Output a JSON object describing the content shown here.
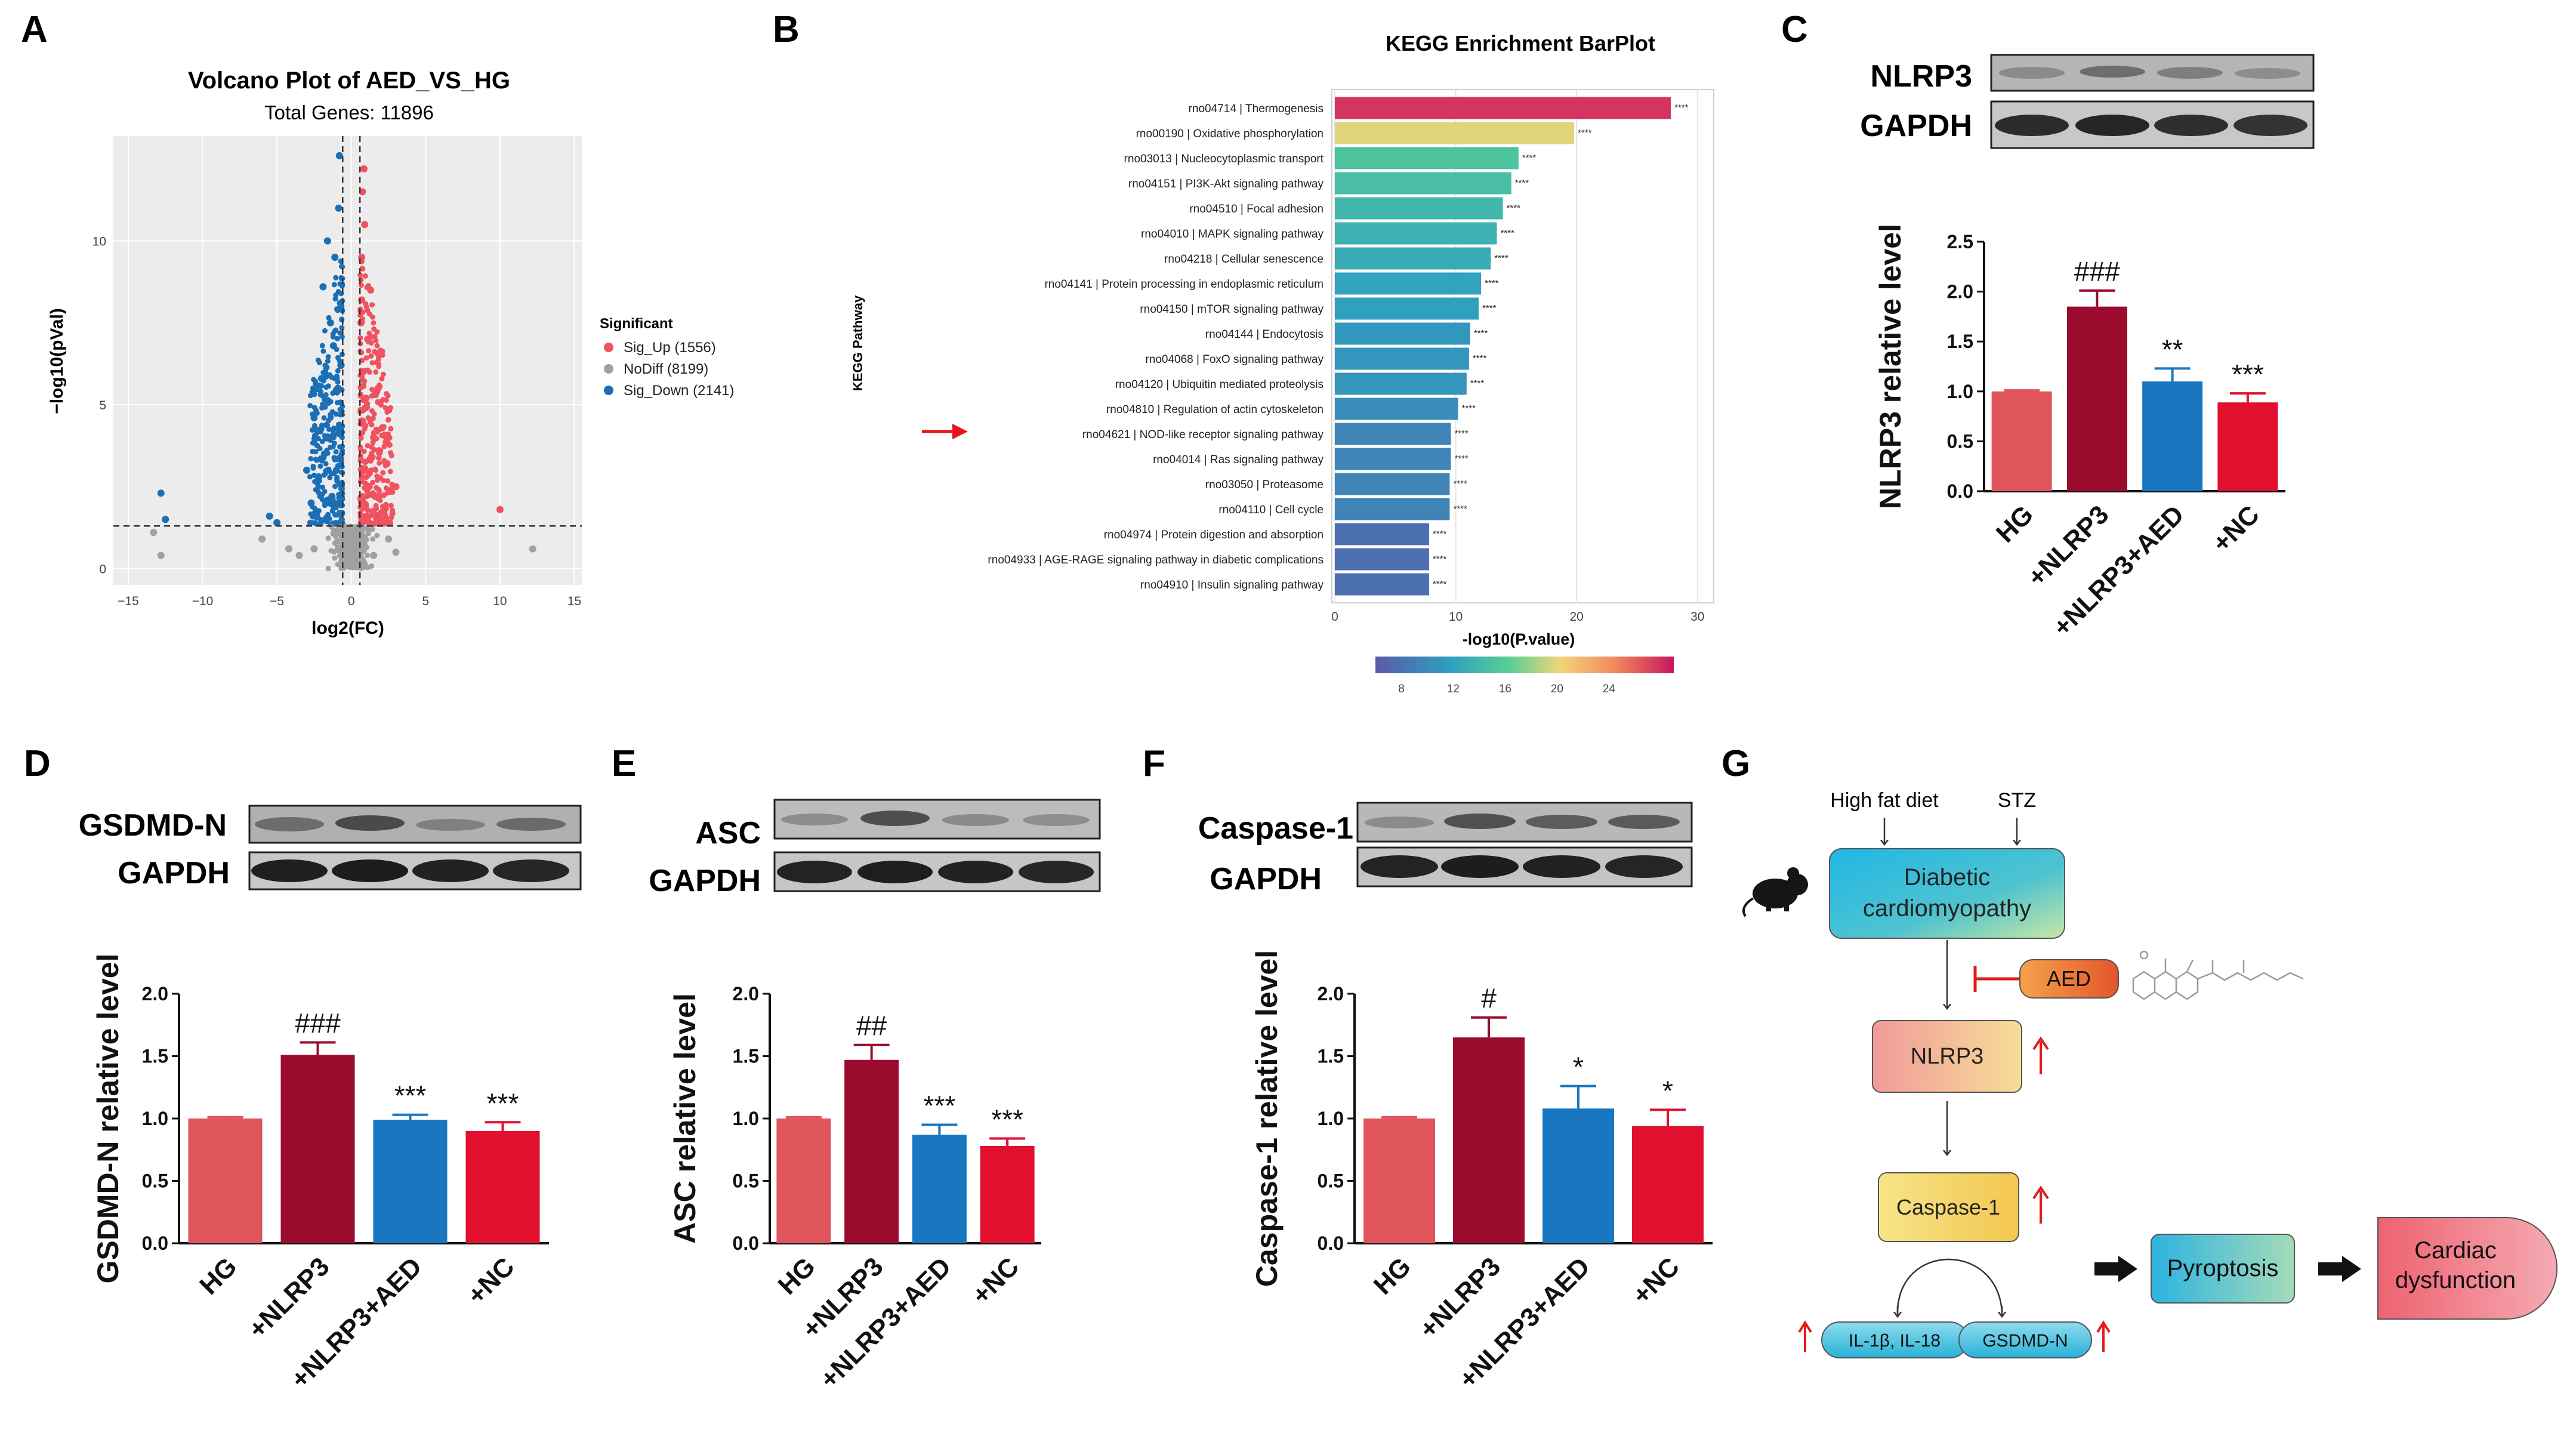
{
  "panel_labels": {
    "A": "A",
    "B": "B",
    "C": "C",
    "D": "D",
    "E": "E",
    "F": "F",
    "G": "G"
  },
  "colors": {
    "up": "#f0525f",
    "down": "#1a6fb5",
    "nodiff": "#a0a0a0",
    "bar_hg": "#e0545c",
    "bar_nlrp3": "#9b0b2e",
    "bar_aed": "#1877c0",
    "bar_nc": "#e0102e"
  },
  "chart_data": [
    {
      "id": "A",
      "type": "scatter",
      "title": "Volcano Plot of AED_VS_HG",
      "subtitle": "Total Genes: 11896",
      "xlabel": "log2(FC)",
      "ylabel": "−log10(pVal)",
      "xlim": [
        -16,
        15.5
      ],
      "ylim": [
        -0.5,
        13.2
      ],
      "xticks": [
        -15,
        -10,
        -5,
        0,
        5,
        10,
        15
      ],
      "xtick_labels": [
        "−15",
        "−10",
        "−5",
        "0",
        "5",
        "10",
        "15"
      ],
      "yticks": [
        0,
        5,
        10
      ],
      "threshold_lines": {
        "x": [
          -0.58,
          0.58
        ],
        "y": 1.3
      },
      "legend": {
        "title": "Significant",
        "position": "right",
        "items": [
          {
            "label": "Sig_Up (1556)",
            "color": "#f0525f"
          },
          {
            "label": "NoDiff (8199)",
            "color": "#a0a0a0"
          },
          {
            "label": "Sig_Down (2141)",
            "color": "#1a6fb5"
          }
        ]
      },
      "series": [
        {
          "name": "Sig_Up",
          "color": "#f0525f",
          "points": [
            [
              0.7,
              2.0
            ],
            [
              0.9,
              3.0
            ],
            [
              0.75,
              4.5
            ],
            [
              1.2,
              2.5
            ],
            [
              0.8,
              6.0
            ],
            [
              1.0,
              5.2
            ],
            [
              0.65,
              7.5
            ],
            [
              0.7,
              9.5
            ],
            [
              1.1,
              7.0
            ],
            [
              1.5,
              4.0
            ],
            [
              2.1,
              4.3
            ],
            [
              1.6,
              2.2
            ],
            [
              0.9,
              10.5
            ],
            [
              0.75,
              11.5
            ],
            [
              2.4,
              3.2
            ],
            [
              1.3,
              8.5
            ],
            [
              1.8,
              5.5
            ],
            [
              0.85,
              12.2
            ],
            [
              10.0,
              1.8
            ],
            [
              3.0,
              2.5
            ],
            [
              1.0,
              1.6
            ],
            [
              1.4,
              3.4
            ],
            [
              0.7,
              8.2
            ]
          ]
        },
        {
          "name": "Sig_Down",
          "color": "#1a6fb5",
          "points": [
            [
              -0.8,
              2.0
            ],
            [
              -1.0,
              3.0
            ],
            [
              -1.5,
              4.0
            ],
            [
              -0.9,
              5.5
            ],
            [
              -1.2,
              6.8
            ],
            [
              -0.7,
              8.0
            ],
            [
              -1.8,
              3.5
            ],
            [
              -2.2,
              2.8
            ],
            [
              -1.1,
              9.5
            ],
            [
              -0.85,
              11.0
            ],
            [
              -0.8,
              12.6
            ],
            [
              -2.5,
              4.6
            ],
            [
              -1.4,
              7.5
            ],
            [
              -3.0,
              3.0
            ],
            [
              -2.0,
              5.8
            ],
            [
              -1.6,
              10.0
            ],
            [
              -5.5,
              1.6
            ],
            [
              -5.0,
              1.4
            ],
            [
              -12.8,
              2.3
            ],
            [
              -12.5,
              1.5
            ],
            [
              -1.3,
              2.2
            ],
            [
              -0.7,
              6.2
            ],
            [
              -2.7,
              2.0
            ],
            [
              -1.9,
              8.6
            ]
          ]
        },
        {
          "name": "NoDiff",
          "color": "#a0a0a0",
          "points": [
            [
              -0.3,
              0.3
            ],
            [
              0.2,
              0.6
            ],
            [
              -0.4,
              1.0
            ],
            [
              0.4,
              0.8
            ],
            [
              0.1,
              0.2
            ],
            [
              -0.2,
              1.2
            ],
            [
              0.3,
              1.1
            ],
            [
              -0.5,
              0.5
            ],
            [
              0.5,
              0.3
            ],
            [
              -13.3,
              1.1
            ],
            [
              -12.8,
              0.4
            ],
            [
              -6.0,
              0.9
            ],
            [
              -4.2,
              0.6
            ],
            [
              12.2,
              0.6
            ],
            [
              3.0,
              0.5
            ],
            [
              2.5,
              0.9
            ],
            [
              -2.5,
              0.6
            ],
            [
              -3.5,
              0.4
            ],
            [
              1.5,
              0.4
            ]
          ]
        }
      ]
    },
    {
      "id": "B",
      "type": "bar",
      "orientation": "horizontal",
      "title": "KEGG Enrichment BarPlot",
      "xlabel": "-log10(P.value)",
      "ylabel": "KEGG Pathway",
      "xlim": [
        0,
        31
      ],
      "xticks": [
        0,
        10,
        20,
        30
      ],
      "categories": [
        "rno04714 | Thermogenesis",
        "rno00190 | Oxidative phosphorylation",
        "rno03013 | Nucleocytoplasmic transport",
        "rno04151 | PI3K-Akt signaling pathway",
        "rno04510 | Focal adhesion",
        "rno04010 | MAPK signaling pathway",
        "rno04218 | Cellular senescence",
        "rno04141 | Protein processing in endoplasmic reticulum",
        "rno04150 | mTOR signaling pathway",
        "rno04144 | Endocytosis",
        "rno04068 | FoxO signaling pathway",
        "rno04120 | Ubiquitin mediated proteolysis",
        "rno04810 | Regulation of actin cytoskeleton",
        "rno04621 | NOD-like receptor signaling pathway",
        "rno04014 | Ras signaling pathway",
        "rno03050 | Proteasome",
        "rno04110 | Cell cycle",
        "rno04974 | Protein digestion and absorption",
        "rno04933 | AGE-RAGE signaling pathway in diabetic complications",
        "rno04910 | Insulin signaling pathway"
      ],
      "values": [
        27.8,
        19.8,
        15.2,
        14.6,
        13.9,
        13.4,
        12.9,
        12.1,
        11.9,
        11.2,
        11.1,
        10.9,
        10.2,
        9.6,
        9.6,
        9.5,
        9.5,
        7.8,
        7.8,
        7.8
      ],
      "annotations": [
        "****",
        "****",
        "****",
        "****",
        "****",
        "****",
        "****",
        "****",
        "****",
        "****",
        "****",
        "****",
        "****",
        "****",
        "****",
        "****",
        "****",
        "****",
        "****",
        "****"
      ],
      "highlight": "rno04621 | NOD-like receptor signaling pathway",
      "colorbar": {
        "ticks": [
          8,
          12,
          16,
          20,
          24
        ],
        "range": [
          6,
          29
        ]
      }
    },
    {
      "id": "C",
      "type": "bar",
      "ylabel": "NLRP3 relative level",
      "ylim": [
        0,
        2.5
      ],
      "yticks": [
        0.0,
        0.5,
        1.0,
        1.5,
        2.0,
        2.5
      ],
      "ytick_labels": [
        "0.0",
        "0.5",
        "1.0",
        "1.5",
        "2.0",
        "2.5"
      ],
      "categories": [
        "HG",
        "+NLRP3",
        "+NLRP3+AED",
        "+NC"
      ],
      "values": [
        1.0,
        1.85,
        1.1,
        0.89
      ],
      "errors": [
        0.01,
        0.16,
        0.13,
        0.09
      ],
      "sig_labels": [
        "",
        "###",
        "**",
        "***"
      ],
      "blots": [
        {
          "label": "NLRP3"
        },
        {
          "label": "GAPDH"
        }
      ]
    },
    {
      "id": "D",
      "type": "bar",
      "ylabel": "GSDMD-N relative level",
      "ylim": [
        0,
        2.0
      ],
      "yticks": [
        0.0,
        0.5,
        1.0,
        1.5,
        2.0
      ],
      "ytick_labels": [
        "0.0",
        "0.5",
        "1.0",
        "1.5",
        "2.0"
      ],
      "categories": [
        "HG",
        "+NLRP3",
        "+NLRP3+AED",
        "+NC"
      ],
      "values": [
        1.0,
        1.51,
        0.99,
        0.9
      ],
      "errors": [
        0.01,
        0.1,
        0.04,
        0.07
      ],
      "sig_labels": [
        "",
        "###",
        "***",
        "***"
      ],
      "blots": [
        {
          "label": "GSDMD-N"
        },
        {
          "label": "GAPDH"
        }
      ]
    },
    {
      "id": "E",
      "type": "bar",
      "ylabel": "ASC relative level",
      "ylim": [
        0,
        2.0
      ],
      "yticks": [
        0.0,
        0.5,
        1.0,
        1.5,
        2.0
      ],
      "ytick_labels": [
        "0.0",
        "0.5",
        "1.0",
        "1.5",
        "2.0"
      ],
      "categories": [
        "HG",
        "+NLRP3",
        "+NLRP3+AED",
        "+NC"
      ],
      "values": [
        1.0,
        1.47,
        0.87,
        0.78
      ],
      "errors": [
        0.01,
        0.12,
        0.08,
        0.06
      ],
      "sig_labels": [
        "",
        "##",
        "***",
        "***"
      ],
      "blots": [
        {
          "label": "ASC"
        },
        {
          "label": "GAPDH"
        }
      ]
    },
    {
      "id": "F",
      "type": "bar",
      "ylabel": "Caspase-1 relative level",
      "ylim": [
        0,
        2.0
      ],
      "yticks": [
        0.0,
        0.5,
        1.0,
        1.5,
        2.0
      ],
      "ytick_labels": [
        "0.0",
        "0.5",
        "1.0",
        "1.5",
        "2.0"
      ],
      "categories": [
        "HG",
        "+NLRP3",
        "+NLRP3+AED",
        "+NC"
      ],
      "values": [
        1.0,
        1.65,
        1.08,
        0.94
      ],
      "errors": [
        0.01,
        0.16,
        0.18,
        0.13
      ],
      "sig_labels": [
        "",
        "#",
        "*",
        "*"
      ],
      "blots": [
        {
          "label": "Caspase-1"
        },
        {
          "label": "GAPDH"
        }
      ]
    }
  ],
  "diagram": {
    "high_fat_diet": "High fat diet",
    "stz": "STZ",
    "diabetic_line1": "Diabetic",
    "diabetic_line2": "cardiomyopathy",
    "aed": "AED",
    "nlrp3": "NLRP3",
    "caspase1": "Caspase-1",
    "il": "IL-1β, IL-18",
    "gsdmd": "GSDMD-N",
    "pyroptosis": "Pyroptosis",
    "cardiac_line1": "Cardiac",
    "cardiac_line2": "dysfunction"
  }
}
